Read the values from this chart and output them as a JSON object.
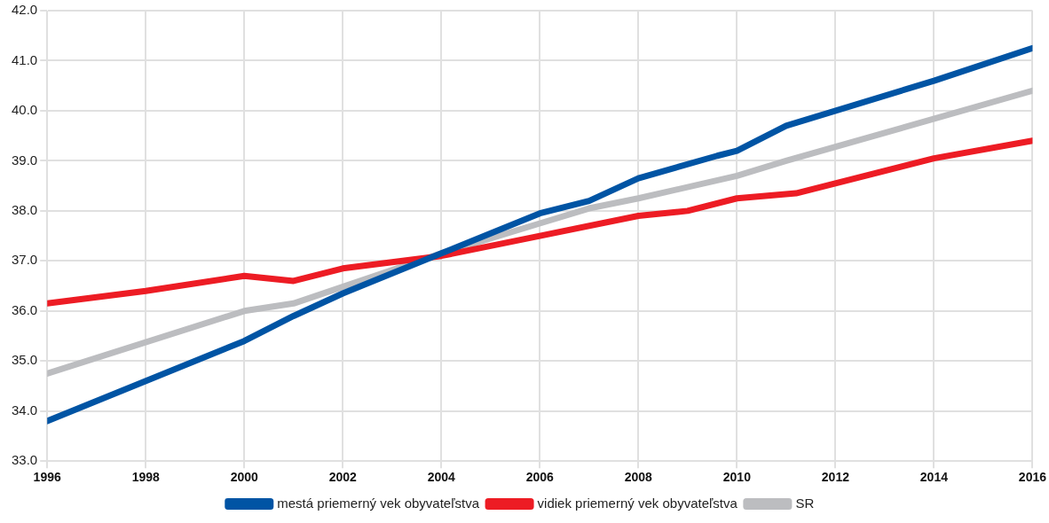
{
  "chart_data": {
    "type": "line",
    "xlim": [
      1996,
      2016
    ],
    "xticks": [
      1996,
      1998,
      2000,
      2002,
      2004,
      2006,
      2008,
      2010,
      2012,
      2014,
      2016
    ],
    "ylim": [
      33,
      42
    ],
    "yticks": [
      {
        "value": 33,
        "label": "33.0"
      },
      {
        "value": 34,
        "label": "34.0"
      },
      {
        "value": 35,
        "label": "35.0"
      },
      {
        "value": 36,
        "label": "36.0"
      },
      {
        "value": 37,
        "label": "37.0"
      },
      {
        "value": 38,
        "label": "38.0"
      },
      {
        "value": 39,
        "label": "39.0"
      },
      {
        "value": 40,
        "label": "40.0"
      },
      {
        "value": 41,
        "label": "41.0"
      },
      {
        "value": 42,
        "label": "42.0"
      }
    ],
    "grid": true,
    "legend": "bottom",
    "marker": "none",
    "line_style": "solid",
    "series": [
      {
        "name": "mestá priemerný vek obyvateľstva",
        "color": "#0054a4",
        "x": [
          1996,
          2000,
          2001,
          2002,
          2004,
          2006,
          2007,
          2008,
          2009.6,
          2010,
          2011,
          2014,
          2016
        ],
        "values": [
          33.8,
          35.4,
          35.9,
          36.35,
          37.15,
          37.95,
          38.2,
          38.65,
          39.1,
          39.2,
          39.7,
          40.6,
          41.25
        ]
      },
      {
        "name": "vidiek priemerný vek obyvateľstva",
        "color": "#ed1c24",
        "x": [
          1996,
          1998,
          2000,
          2001,
          2002,
          2004,
          2006,
          2008,
          2009,
          2010,
          2011.2,
          2014,
          2016
        ],
        "values": [
          36.15,
          36.4,
          36.7,
          36.6,
          36.85,
          37.1,
          37.5,
          37.9,
          38.0,
          38.25,
          38.35,
          39.05,
          39.4
        ]
      },
      {
        "name": "SR",
        "color": "#bcbdc0",
        "x": [
          1996,
          2000,
          2001,
          2004,
          2006,
          2007,
          2008,
          2010,
          2011,
          2016
        ],
        "values": [
          34.75,
          36.0,
          36.15,
          37.15,
          37.75,
          38.05,
          38.25,
          38.7,
          39.0,
          40.4
        ]
      }
    ]
  }
}
